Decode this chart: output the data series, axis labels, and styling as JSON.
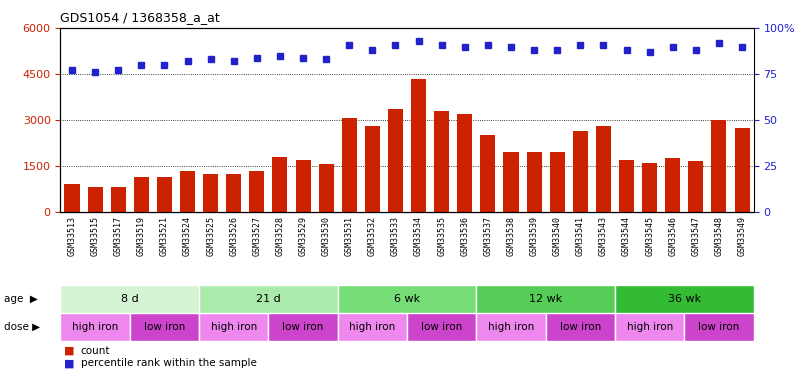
{
  "title": "GDS1054 / 1368358_a_at",
  "samples": [
    "GSM33513",
    "GSM33515",
    "GSM33517",
    "GSM33519",
    "GSM33521",
    "GSM33524",
    "GSM33525",
    "GSM33526",
    "GSM33527",
    "GSM33528",
    "GSM33529",
    "GSM33530",
    "GSM33531",
    "GSM33532",
    "GSM33533",
    "GSM33534",
    "GSM33535",
    "GSM33536",
    "GSM33537",
    "GSM33538",
    "GSM33539",
    "GSM33540",
    "GSM33541",
    "GSM33543",
    "GSM33544",
    "GSM33545",
    "GSM33546",
    "GSM33547",
    "GSM33548",
    "GSM33549"
  ],
  "counts": [
    900,
    800,
    800,
    1150,
    1150,
    1350,
    1250,
    1250,
    1350,
    1800,
    1700,
    1550,
    3050,
    2800,
    3350,
    4350,
    3300,
    3200,
    2500,
    1950,
    1950,
    1950,
    2650,
    2800,
    1700,
    1600,
    1750,
    1650,
    3000,
    2750
  ],
  "percentile": [
    77,
    76,
    77,
    80,
    80,
    82,
    83,
    82,
    84,
    85,
    84,
    83,
    91,
    88,
    91,
    93,
    91,
    90,
    91,
    90,
    88,
    88,
    91,
    91,
    88,
    87,
    90,
    88,
    92,
    90
  ],
  "ylim_left": [
    0,
    6000
  ],
  "ylim_right": [
    0,
    100
  ],
  "yticks_left": [
    0,
    1500,
    3000,
    4500,
    6000
  ],
  "yticks_right": [
    0,
    25,
    50,
    75,
    100
  ],
  "bar_color": "#cc2200",
  "dot_color": "#2222cc",
  "age_groups": [
    {
      "label": "8 d",
      "start": 0,
      "end": 6,
      "color": "#d4f5d4"
    },
    {
      "label": "21 d",
      "start": 6,
      "end": 12,
      "color": "#aaeaaa"
    },
    {
      "label": "6 wk",
      "start": 12,
      "end": 18,
      "color": "#77dd77"
    },
    {
      "label": "12 wk",
      "start": 18,
      "end": 24,
      "color": "#55cc55"
    },
    {
      "label": "36 wk",
      "start": 24,
      "end": 30,
      "color": "#33bb33"
    }
  ],
  "dose_groups": [
    {
      "label": "high iron",
      "start": 0,
      "end": 3,
      "color": "#ee88ee"
    },
    {
      "label": "low iron",
      "start": 3,
      "end": 6,
      "color": "#cc44cc"
    },
    {
      "label": "high iron",
      "start": 6,
      "end": 9,
      "color": "#ee88ee"
    },
    {
      "label": "low iron",
      "start": 9,
      "end": 12,
      "color": "#cc44cc"
    },
    {
      "label": "high iron",
      "start": 12,
      "end": 15,
      "color": "#ee88ee"
    },
    {
      "label": "low iron",
      "start": 15,
      "end": 18,
      "color": "#cc44cc"
    },
    {
      "label": "high iron",
      "start": 18,
      "end": 21,
      "color": "#ee88ee"
    },
    {
      "label": "low iron",
      "start": 21,
      "end": 24,
      "color": "#cc44cc"
    },
    {
      "label": "high iron",
      "start": 24,
      "end": 27,
      "color": "#ee88ee"
    },
    {
      "label": "low iron",
      "start": 27,
      "end": 30,
      "color": "#cc44cc"
    }
  ]
}
